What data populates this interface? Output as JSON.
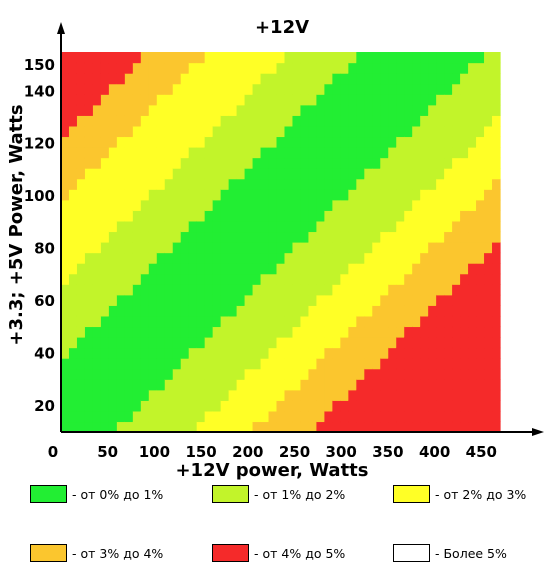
{
  "chart_data": {
    "type": "heatmap",
    "title": "+12V",
    "xlabel": "+12V power, Watts",
    "ylabel": "+3.3; +5V Power, Watts",
    "xlim": [
      0,
      470
    ],
    "ylim": [
      10,
      155
    ],
    "x_ticks": [
      0,
      50,
      100,
      150,
      200,
      250,
      300,
      350,
      400,
      450
    ],
    "y_ticks": [
      20,
      40,
      60,
      80,
      100,
      120,
      140,
      150
    ],
    "grid": false,
    "legend_position": "bottom",
    "cell_size": {
      "x_step_watts": 8.6,
      "y_step_watts": 4.0
    },
    "model": {
      "description": "Deviation class is a function of d = (y - 1.34*x) / 8.6 per cell on the cross-load map",
      "class_thresholds": [
        {
          "max_d": -48,
          "class": 4
        },
        {
          "max_d": -38,
          "class": 3
        },
        {
          "max_d": -24,
          "class": 2
        },
        {
          "max_d": -12,
          "class": 1
        },
        {
          "max_d": 9,
          "class": 0
        },
        {
          "max_d": 22,
          "class": 1
        },
        {
          "max_d": 32,
          "class": 2
        },
        {
          "max_d": 42,
          "class": 3
        },
        {
          "max_d": 1000,
          "class": 4
        }
      ],
      "x_scale": 0.36,
      "x_offset": 10
    },
    "classes": [
      {
        "id": 0,
        "label": "- от 0% до 1%",
        "color": "#22ee33"
      },
      {
        "id": 1,
        "label": "- от 1% до 2%",
        "color": "#c2f42a"
      },
      {
        "id": 2,
        "label": "- от 2% до 3%",
        "color": "#ffff26"
      },
      {
        "id": 3,
        "label": "- от 3% до 4%",
        "color": "#fbc62e"
      },
      {
        "id": 4,
        "label": "- от 4% до 5%",
        "color": "#f52a2a"
      },
      {
        "id": 5,
        "label": "- Более 5%",
        "color": "#ffffff"
      }
    ]
  }
}
